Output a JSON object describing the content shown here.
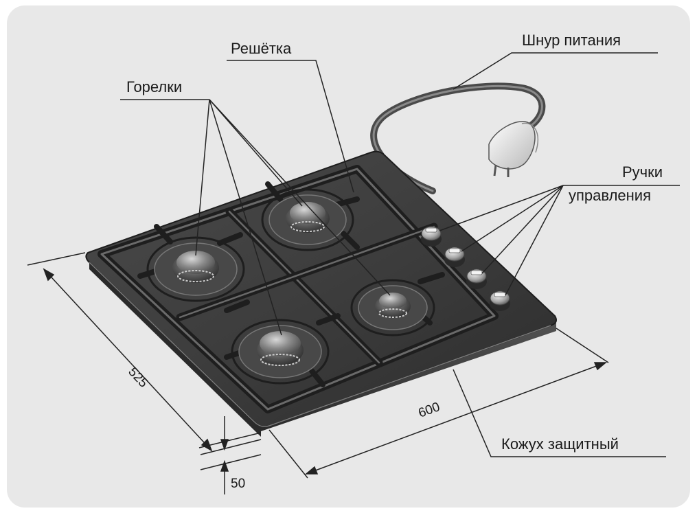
{
  "labels": {
    "burners": "Горелки",
    "grate": "Решётка",
    "power_cord": "Шнур питания",
    "knobs_line1": "Ручки",
    "knobs_line2": "управления",
    "housing": "Кожух защитный"
  },
  "dimensions": {
    "depth": "525",
    "width": "600",
    "height": "50"
  },
  "colors": {
    "background": "#e8e8e8",
    "surface": "#3a3a3a",
    "surface_light": "#5a5a5a",
    "grate": "#2e2e2e",
    "grate_highlight": "#8a8a8a",
    "line": "#222222"
  }
}
